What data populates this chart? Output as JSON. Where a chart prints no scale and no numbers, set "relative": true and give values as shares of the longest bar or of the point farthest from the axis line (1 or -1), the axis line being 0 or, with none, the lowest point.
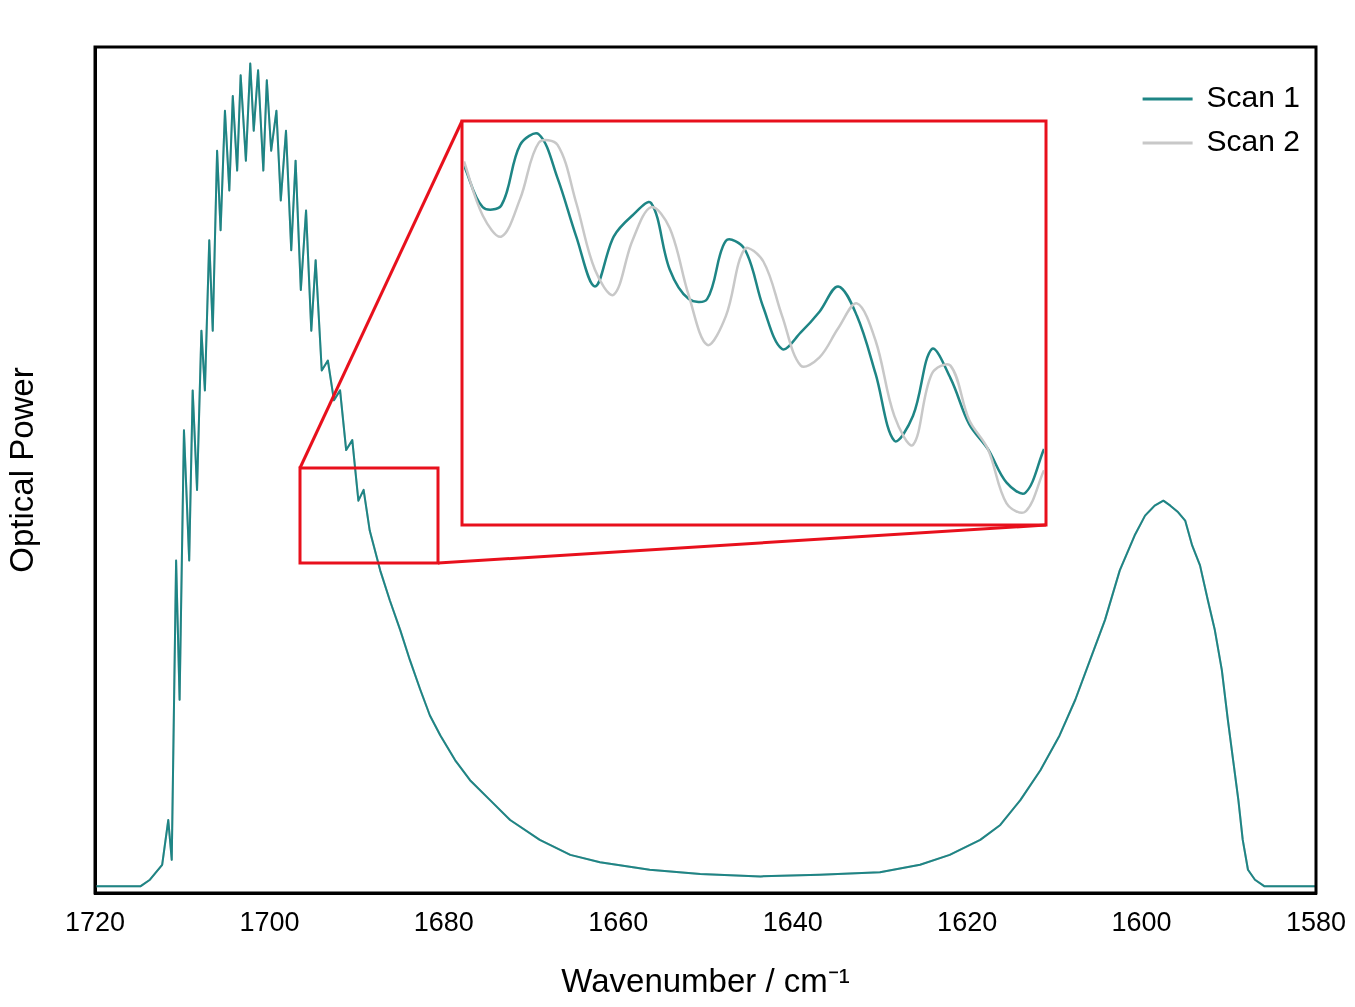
{
  "chart_data": [
    {
      "type": "line",
      "xlabel": "Wavenumber / cm⁻¹",
      "ylabel": "Optical Power",
      "relative": true,
      "legend": "top right",
      "xlim": [
        1720,
        1580
      ],
      "xticks": [
        1720,
        1700,
        1680,
        1660,
        1640,
        1620,
        1600,
        1580
      ],
      "x": [
        1720,
        1714.8,
        1713.7,
        1712.3,
        1711.6,
        1711.2,
        1710.7,
        1710.3,
        1709.8,
        1709.2,
        1708.8,
        1708.3,
        1707.8,
        1707.4,
        1706.9,
        1706.5,
        1706.0,
        1705.6,
        1705.1,
        1704.6,
        1704.2,
        1703.7,
        1703.3,
        1702.7,
        1702.2,
        1701.8,
        1701.3,
        1700.7,
        1700.3,
        1699.8,
        1699.2,
        1698.7,
        1698.1,
        1697.5,
        1697.0,
        1696.4,
        1695.8,
        1695.2,
        1694.7,
        1694.0,
        1693.3,
        1692.6,
        1691.9,
        1691.2,
        1690.5,
        1689.8,
        1689.2,
        1688.5,
        1687.3,
        1686.2,
        1685.0,
        1683.9,
        1682.7,
        1681.6,
        1680.4,
        1678.7,
        1677.0,
        1674.7,
        1672.4,
        1669.0,
        1665.5,
        1662.1,
        1656.4,
        1650.6,
        1643.7,
        1636.9,
        1630.0,
        1625.4,
        1622.0,
        1618.5,
        1616.2,
        1613.9,
        1611.6,
        1609.4,
        1607.6,
        1605.9,
        1604.2,
        1602.5,
        1600.8,
        1599.6,
        1598.5,
        1597.5,
        1596.7,
        1595.8,
        1595.0,
        1594.2,
        1593.3,
        1592.4,
        1591.6,
        1590.8,
        1590.1,
        1589.5,
        1588.9,
        1588.4,
        1587.8,
        1587.0,
        1585.9,
        1580
      ],
      "series": [
        {
          "name": "Scan 1",
          "color": "#1e8585",
          "values": [
            0.008,
            0.008,
            0.016,
            0.034,
            0.088,
            0.04,
            0.401,
            0.233,
            0.558,
            0.401,
            0.606,
            0.486,
            0.678,
            0.606,
            0.787,
            0.678,
            0.895,
            0.799,
            0.943,
            0.847,
            0.961,
            0.871,
            0.986,
            0.883,
            1,
            0.919,
            0.992,
            0.871,
            0.98,
            0.895,
            0.943,
            0.835,
            0.919,
            0.775,
            0.883,
            0.727,
            0.823,
            0.678,
            0.763,
            0.63,
            0.642,
            0.594,
            0.606,
            0.534,
            0.546,
            0.473,
            0.486,
            0.437,
            0.389,
            0.353,
            0.317,
            0.281,
            0.245,
            0.214,
            0.19,
            0.16,
            0.136,
            0.112,
            0.088,
            0.064,
            0.046,
            0.037,
            0.028,
            0.023,
            0.02,
            0.022,
            0.025,
            0.034,
            0.046,
            0.064,
            0.082,
            0.112,
            0.148,
            0.19,
            0.233,
            0.281,
            0.329,
            0.389,
            0.431,
            0.455,
            0.467,
            0.473,
            0.467,
            0.459,
            0.449,
            0.419,
            0.395,
            0.353,
            0.317,
            0.269,
            0.208,
            0.16,
            0.112,
            0.064,
            0.028,
            0.016,
            0.008,
            0.008
          ]
        },
        {
          "name": "Scan 2",
          "color": "#c8c8c8",
          "values": [
            0.008,
            0.008,
            0.016,
            0.034,
            0.088,
            0.04,
            0.401,
            0.233,
            0.558,
            0.401,
            0.606,
            0.486,
            0.678,
            0.606,
            0.787,
            0.678,
            0.895,
            0.799,
            0.943,
            0.847,
            0.961,
            0.871,
            0.986,
            0.883,
            1,
            0.919,
            0.992,
            0.871,
            0.98,
            0.895,
            0.943,
            0.835,
            0.919,
            0.775,
            0.883,
            0.727,
            0.823,
            0.678,
            0.763,
            0.63,
            0.642,
            0.594,
            0.606,
            0.534,
            0.546,
            0.473,
            0.486,
            0.437,
            0.389,
            0.353,
            0.317,
            0.281,
            0.245,
            0.214,
            0.19,
            0.16,
            0.136,
            0.112,
            0.088,
            0.064,
            0.046,
            0.037,
            0.028,
            0.023,
            0.02,
            0.022,
            0.025,
            0.034,
            0.046,
            0.064,
            0.082,
            0.112,
            0.148,
            0.19,
            0.233,
            0.281,
            0.329,
            0.389,
            0.431,
            0.455,
            0.467,
            0.473,
            0.467,
            0.459,
            0.449,
            0.419,
            0.395,
            0.353,
            0.317,
            0.269,
            0.208,
            0.16,
            0.112,
            0.064,
            0.028,
            0.016,
            0.008,
            0.008
          ]
        }
      ]
    },
    {
      "type": "line",
      "relative": true,
      "categories": [
        null,
        null,
        null,
        null,
        null,
        null,
        null,
        null,
        null,
        null,
        null,
        null,
        null,
        null,
        null,
        null,
        null,
        null,
        null,
        null,
        null,
        null,
        null,
        null,
        null,
        null,
        null,
        null,
        null,
        null,
        null,
        null
      ],
      "series": [
        {
          "color": "#c8c8c8",
          "values": [
            0.928,
            0.785,
            0.729,
            0.829,
            0.978,
            0.972,
            0.818,
            0.641,
            0.575,
            0.718,
            0.807,
            0.751,
            0.575,
            0.442,
            0.519,
            0.696,
            0.663,
            0.519,
            0.387,
            0.409,
            0.486,
            0.552,
            0.453,
            0.254,
            0.177,
            0.365,
            0.387,
            0.243,
            0.166,
            0.022,
            0,
            0.11
          ]
        },
        {
          "color": "#1e8585",
          "values": [
            0.917,
            0.807,
            0.812,
            0.972,
            1,
            0.884,
            0.729,
            0.597,
            0.729,
            0.785,
            0.818,
            0.641,
            0.564,
            0.564,
            0.718,
            0.696,
            0.541,
            0.431,
            0.475,
            0.53,
            0.597,
            0.519,
            0.365,
            0.188,
            0.254,
            0.431,
            0.354,
            0.232,
            0.166,
            0.077,
            0.05,
            0.166
          ]
        }
      ]
    }
  ]
}
